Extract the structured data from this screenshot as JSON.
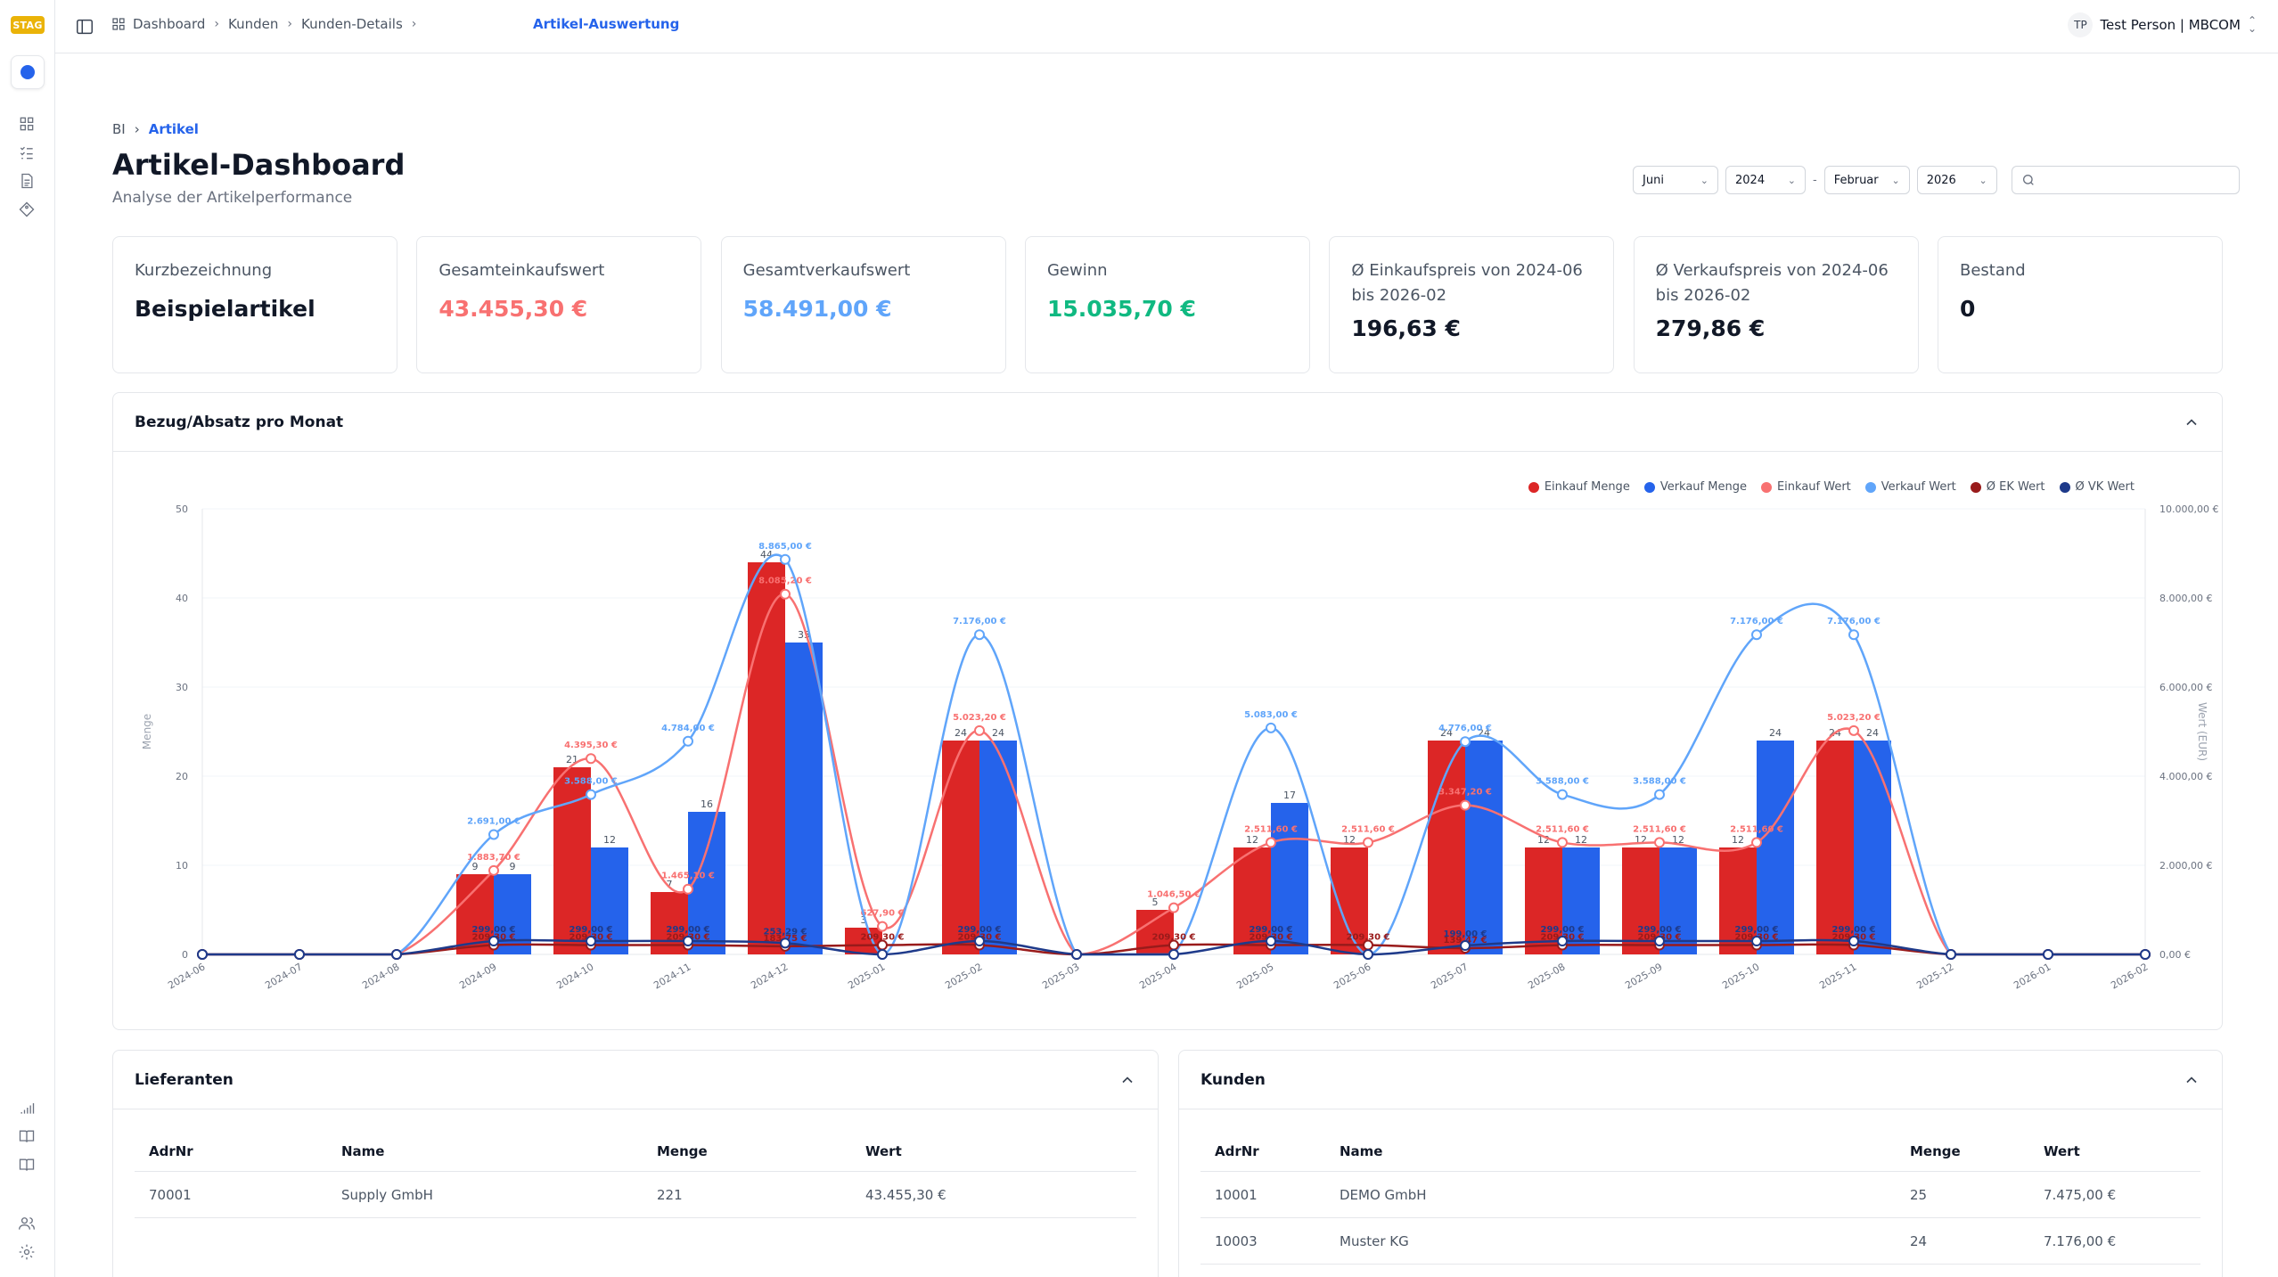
{
  "app": {
    "logo": "STAG"
  },
  "topbar": {
    "breadcrumbs": [
      "Dashboard",
      "Kunden",
      "Kunden-Details"
    ],
    "active": "Artikel-Auswertung",
    "user_initials": "TP",
    "user_name": "Test Person | MBCOM"
  },
  "page": {
    "crumbs": [
      "BI",
      "Artikel"
    ],
    "title": "Artikel-Dashboard",
    "subtitle": "Analyse der Artikelperformance"
  },
  "filters": {
    "from_month": "Juni",
    "from_year": "2024",
    "separator": "-",
    "to_month": "Februar",
    "to_year": "2026",
    "search_placeholder": ""
  },
  "kpis": [
    {
      "label": "Kurzbezeichnung",
      "value": "Beispielartikel",
      "color": "#111827"
    },
    {
      "label": "Gesamteinkaufswert",
      "value": "43.455,30 €",
      "color": "#f87171"
    },
    {
      "label": "Gesamtverkaufswert",
      "value": "58.491,00 €",
      "color": "#60a5fa"
    },
    {
      "label": "Gewinn",
      "value": "15.035,70 €",
      "color": "#10b981"
    },
    {
      "label": "Ø Einkaufspreis von 2024-06 bis 2026-02",
      "value": "196,63 €",
      "color": "#111827"
    },
    {
      "label": "Ø Verkaufspreis von 2024-06 bis 2026-02",
      "value": "279,86 €",
      "color": "#111827"
    },
    {
      "label": "Bestand",
      "value": "0",
      "color": "#111827"
    }
  ],
  "chart_panel": {
    "title": "Bezug/Absatz pro Monat"
  },
  "chart_data": {
    "type": "bar",
    "categories": [
      "2024-06",
      "2024-07",
      "2024-08",
      "2024-09",
      "2024-10",
      "2024-11",
      "2024-12",
      "2025-01",
      "2025-02",
      "2025-03",
      "2025-04",
      "2025-05",
      "2025-06",
      "2025-07",
      "2025-08",
      "2025-09",
      "2025-10",
      "2025-11",
      "2025-12",
      "2026-01",
      "2026-02"
    ],
    "ylabel": "Menge",
    "y2label": "Wert (EUR)",
    "ylim": [
      0,
      50
    ],
    "y2lim": [
      0,
      10000
    ],
    "yticks": [
      "0",
      "10",
      "20",
      "30",
      "40",
      "50"
    ],
    "y2ticks": [
      "0,00 €",
      "2.000,00 €",
      "4.000,00 €",
      "6.000,00 €",
      "8.000,00 €",
      "10.000,00 €"
    ],
    "legend_position": "top-right",
    "series": [
      {
        "name": "Einkauf Menge",
        "kind": "bar",
        "axis": "left",
        "color": "#dc2626",
        "values": [
          0,
          0,
          0,
          9,
          21,
          7,
          44,
          3,
          24,
          0,
          5,
          12,
          12,
          24,
          12,
          12,
          12,
          24,
          0,
          0,
          0
        ]
      },
      {
        "name": "Verkauf Menge",
        "kind": "bar",
        "axis": "left",
        "color": "#2563eb",
        "values": [
          0,
          0,
          0,
          9,
          12,
          16,
          35,
          0,
          24,
          0,
          0,
          17,
          0,
          24,
          12,
          12,
          24,
          24,
          0,
          0,
          0
        ]
      },
      {
        "name": "Einkauf Wert",
        "kind": "line",
        "axis": "right",
        "color": "#f87171",
        "values": [
          0,
          0,
          0,
          1883.7,
          4395.3,
          1465.1,
          8085.2,
          627.9,
          5023.2,
          0,
          1046.5,
          2511.6,
          2511.6,
          3347.2,
          2511.6,
          2511.6,
          2511.6,
          5023.2,
          0,
          0,
          0
        ],
        "labels": [
          "",
          "",
          "",
          "1.883,70 €",
          "4.395,30 €",
          "1.465,10 €",
          "8.085,20 €",
          "627,90 €",
          "5.023,20 €",
          "",
          "1.046,50 €",
          "2.511,60 €",
          "2.511,60 €",
          "3.347,20 €",
          "2.511,60 €",
          "2.511,60 €",
          "2.511,60 €",
          "5.023,20 €",
          "",
          "",
          ""
        ]
      },
      {
        "name": "Verkauf Wert",
        "kind": "line",
        "axis": "right",
        "color": "#60a5fa",
        "values": [
          0,
          0,
          0,
          2691,
          3588,
          4784,
          8865,
          0,
          7176,
          0,
          0,
          5083,
          0,
          4776,
          3588,
          3588,
          7176,
          7176,
          0,
          0,
          0
        ],
        "labels": [
          "",
          "",
          "",
          "2.691,00 €",
          "3.588,00 €",
          "4.784,00 €",
          "8.865,00 €",
          "",
          "7.176,00 €",
          "",
          "",
          "5.083,00 €",
          "",
          "4.776,00 €",
          "3.588,00 €",
          "3.588,00 €",
          "7.176,00 €",
          "7.176,00 €",
          "",
          "",
          ""
        ]
      },
      {
        "name": "Ø EK Wert",
        "kind": "line",
        "axis": "right",
        "color": "#991b1b",
        "values": [
          0,
          0,
          0,
          209.3,
          209.3,
          209.3,
          183.75,
          209.3,
          209.3,
          0,
          209.3,
          209.3,
          209.3,
          139.47,
          209.3,
          209.3,
          209.3,
          209.3,
          0,
          0,
          0
        ],
        "labels": [
          "",
          "",
          "",
          "209,30 €",
          "209,30 €",
          "209,30 €",
          "183,75 €",
          "209,30 €",
          "209,30 €",
          "",
          "209,30 €",
          "209,30 €",
          "209,30 €",
          "139,47 €",
          "209,30 €",
          "209,30 €",
          "209,30 €",
          "209,30 €",
          "",
          "",
          ""
        ]
      },
      {
        "name": "Ø VK Wert",
        "kind": "line",
        "axis": "right",
        "color": "#1e3a8a",
        "values": [
          0,
          0,
          0,
          299,
          299,
          299,
          253.29,
          0,
          299,
          0,
          0,
          299,
          0,
          199,
          299,
          299,
          299,
          299,
          0,
          0,
          0
        ],
        "labels": [
          "",
          "",
          "",
          "299,00 €",
          "299,00 €",
          "299,00 €",
          "253,29 €",
          "",
          "299,00 €",
          "",
          "",
          "299,00 €",
          "",
          "199,00 €",
          "299,00 €",
          "299,00 €",
          "299,00 €",
          "299,00 €",
          "",
          "",
          ""
        ]
      }
    ]
  },
  "lieferanten": {
    "title": "Lieferanten",
    "columns": [
      "AdrNr",
      "Name",
      "Menge",
      "Wert"
    ],
    "rows": [
      [
        "70001",
        "Supply GmbH",
        "221",
        "43.455,30 €"
      ]
    ]
  },
  "kunden": {
    "title": "Kunden",
    "columns": [
      "AdrNr",
      "Name",
      "Menge",
      "Wert"
    ],
    "rows": [
      [
        "10001",
        "DEMO GmbH",
        "25",
        "7.475,00 €"
      ],
      [
        "10003",
        "Muster KG",
        "24",
        "7.176,00 €"
      ]
    ]
  },
  "icons": {
    "sidebar": [
      "dashboard-icon",
      "list-check-icon",
      "document-icon",
      "tag-icon",
      "bar-chart-icon",
      "book-icon",
      "book-open-icon",
      "users-icon",
      "gear-icon"
    ]
  }
}
